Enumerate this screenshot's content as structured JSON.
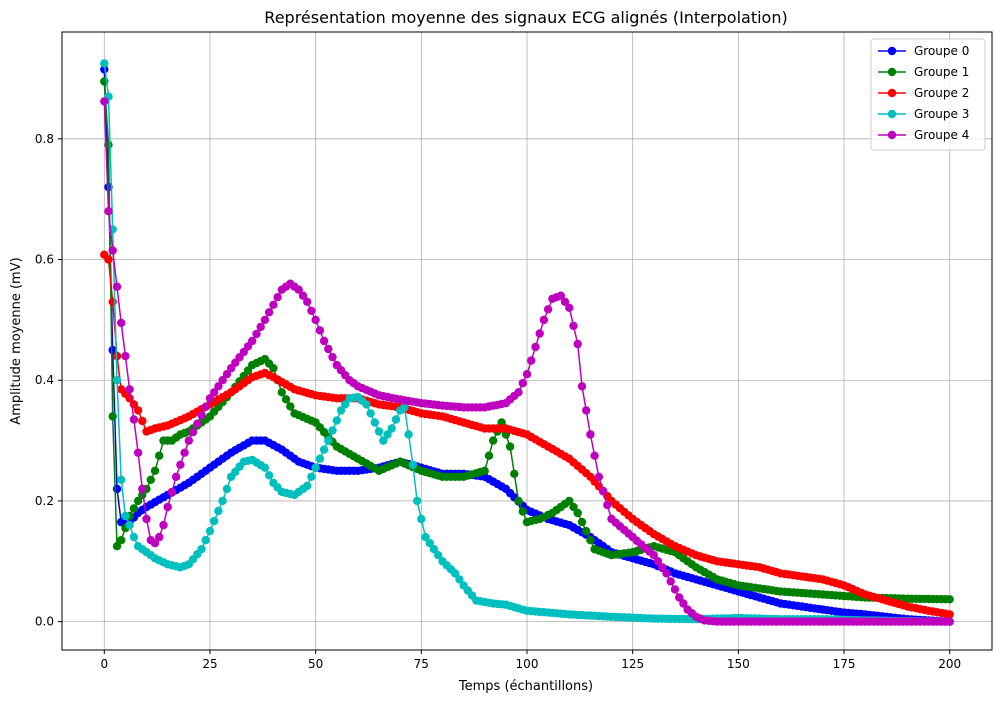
{
  "chart_data": {
    "type": "line",
    "title": "Représentation moyenne des signaux ECG alignés (Interpolation)",
    "xlabel": "Temps (échantillons)",
    "ylabel": "Amplitude moyenne (mV)",
    "xlim": [
      -10,
      210
    ],
    "ylim": [
      -0.047,
      0.977
    ],
    "xticks": [
      0,
      25,
      50,
      75,
      100,
      125,
      150,
      175,
      200
    ],
    "yticks": [
      0.0,
      0.2,
      0.4,
      0.6,
      0.8
    ],
    "xtick_labels": [
      "0",
      "25",
      "50",
      "75",
      "100",
      "125",
      "150",
      "175",
      "200"
    ],
    "ytick_labels": [
      "0.0",
      "0.2",
      "0.4",
      "0.6",
      "0.8"
    ],
    "grid": true,
    "legend_position": "top-right",
    "marker": "circle",
    "series": [
      {
        "name": "Groupe 0",
        "color": "#0000ff",
        "points": [
          [
            0,
            0.915
          ],
          [
            1,
            0.72
          ],
          [
            2,
            0.45
          ],
          [
            3,
            0.22
          ],
          [
            4,
            0.165
          ],
          [
            6,
            0.165
          ],
          [
            8,
            0.18
          ],
          [
            10,
            0.19
          ],
          [
            15,
            0.21
          ],
          [
            20,
            0.23
          ],
          [
            25,
            0.255
          ],
          [
            30,
            0.28
          ],
          [
            35,
            0.3
          ],
          [
            38,
            0.3
          ],
          [
            42,
            0.285
          ],
          [
            46,
            0.265
          ],
          [
            50,
            0.255
          ],
          [
            55,
            0.25
          ],
          [
            60,
            0.25
          ],
          [
            65,
            0.255
          ],
          [
            70,
            0.265
          ],
          [
            75,
            0.255
          ],
          [
            80,
            0.245
          ],
          [
            85,
            0.245
          ],
          [
            90,
            0.24
          ],
          [
            95,
            0.22
          ],
          [
            100,
            0.185
          ],
          [
            105,
            0.17
          ],
          [
            110,
            0.16
          ],
          [
            115,
            0.14
          ],
          [
            120,
            0.115
          ],
          [
            125,
            0.105
          ],
          [
            130,
            0.095
          ],
          [
            135,
            0.08
          ],
          [
            140,
            0.07
          ],
          [
            145,
            0.06
          ],
          [
            150,
            0.05
          ],
          [
            155,
            0.04
          ],
          [
            160,
            0.03
          ],
          [
            165,
            0.025
          ],
          [
            170,
            0.02
          ],
          [
            175,
            0.015
          ],
          [
            180,
            0.012
          ],
          [
            185,
            0.008
          ],
          [
            190,
            0.004
          ],
          [
            195,
            0.002
          ],
          [
            200,
            0.0
          ]
        ]
      },
      {
        "name": "Groupe 1",
        "color": "#008000",
        "points": [
          [
            0,
            0.895
          ],
          [
            1,
            0.79
          ],
          [
            2,
            0.34
          ],
          [
            3,
            0.125
          ],
          [
            4,
            0.135
          ],
          [
            6,
            0.175
          ],
          [
            8,
            0.2
          ],
          [
            10,
            0.22
          ],
          [
            12,
            0.25
          ],
          [
            14,
            0.3
          ],
          [
            16,
            0.3
          ],
          [
            18,
            0.31
          ],
          [
            20,
            0.315
          ],
          [
            25,
            0.34
          ],
          [
            30,
            0.38
          ],
          [
            35,
            0.425
          ],
          [
            38,
            0.435
          ],
          [
            40,
            0.42
          ],
          [
            42,
            0.38
          ],
          [
            45,
            0.345
          ],
          [
            50,
            0.33
          ],
          [
            55,
            0.29
          ],
          [
            60,
            0.27
          ],
          [
            65,
            0.25
          ],
          [
            70,
            0.265
          ],
          [
            75,
            0.25
          ],
          [
            80,
            0.24
          ],
          [
            85,
            0.24
          ],
          [
            90,
            0.25
          ],
          [
            92,
            0.3
          ],
          [
            94,
            0.33
          ],
          [
            96,
            0.29
          ],
          [
            98,
            0.2
          ],
          [
            100,
            0.165
          ],
          [
            103,
            0.17
          ],
          [
            106,
            0.18
          ],
          [
            110,
            0.2
          ],
          [
            112,
            0.18
          ],
          [
            116,
            0.12
          ],
          [
            120,
            0.11
          ],
          [
            125,
            0.115
          ],
          [
            130,
            0.125
          ],
          [
            135,
            0.115
          ],
          [
            140,
            0.09
          ],
          [
            145,
            0.07
          ],
          [
            150,
            0.06
          ],
          [
            160,
            0.05
          ],
          [
            170,
            0.045
          ],
          [
            180,
            0.04
          ],
          [
            190,
            0.038
          ],
          [
            200,
            0.037
          ]
        ]
      },
      {
        "name": "Groupe 2",
        "color": "#ff0000",
        "points": [
          [
            0,
            0.608
          ],
          [
            1,
            0.6
          ],
          [
            2,
            0.53
          ],
          [
            3,
            0.44
          ],
          [
            4,
            0.385
          ],
          [
            6,
            0.37
          ],
          [
            8,
            0.35
          ],
          [
            10,
            0.315
          ],
          [
            12,
            0.32
          ],
          [
            15,
            0.325
          ],
          [
            20,
            0.34
          ],
          [
            25,
            0.36
          ],
          [
            30,
            0.38
          ],
          [
            35,
            0.405
          ],
          [
            38,
            0.412
          ],
          [
            40,
            0.405
          ],
          [
            45,
            0.385
          ],
          [
            50,
            0.375
          ],
          [
            55,
            0.37
          ],
          [
            60,
            0.37
          ],
          [
            65,
            0.36
          ],
          [
            70,
            0.355
          ],
          [
            75,
            0.345
          ],
          [
            80,
            0.34
          ],
          [
            85,
            0.33
          ],
          [
            90,
            0.32
          ],
          [
            95,
            0.32
          ],
          [
            100,
            0.31
          ],
          [
            105,
            0.29
          ],
          [
            110,
            0.27
          ],
          [
            115,
            0.24
          ],
          [
            120,
            0.2
          ],
          [
            125,
            0.17
          ],
          [
            130,
            0.145
          ],
          [
            135,
            0.125
          ],
          [
            140,
            0.11
          ],
          [
            145,
            0.1
          ],
          [
            150,
            0.095
          ],
          [
            155,
            0.09
          ],
          [
            160,
            0.08
          ],
          [
            165,
            0.075
          ],
          [
            170,
            0.07
          ],
          [
            175,
            0.06
          ],
          [
            180,
            0.045
          ],
          [
            185,
            0.035
          ],
          [
            190,
            0.025
          ],
          [
            195,
            0.018
          ],
          [
            200,
            0.012
          ]
        ]
      },
      {
        "name": "Groupe 3",
        "color": "#00bfbf",
        "points": [
          [
            0,
            0.925
          ],
          [
            1,
            0.87
          ],
          [
            2,
            0.65
          ],
          [
            3,
            0.4
          ],
          [
            4,
            0.235
          ],
          [
            5,
            0.175
          ],
          [
            6,
            0.16
          ],
          [
            7,
            0.14
          ],
          [
            8,
            0.125
          ],
          [
            10,
            0.115
          ],
          [
            12,
            0.105
          ],
          [
            15,
            0.095
          ],
          [
            18,
            0.09
          ],
          [
            20,
            0.095
          ],
          [
            23,
            0.12
          ],
          [
            25,
            0.15
          ],
          [
            28,
            0.2
          ],
          [
            30,
            0.24
          ],
          [
            33,
            0.265
          ],
          [
            35,
            0.268
          ],
          [
            38,
            0.255
          ],
          [
            40,
            0.23
          ],
          [
            42,
            0.215
          ],
          [
            45,
            0.21
          ],
          [
            48,
            0.225
          ],
          [
            50,
            0.255
          ],
          [
            53,
            0.3
          ],
          [
            56,
            0.35
          ],
          [
            58,
            0.37
          ],
          [
            60,
            0.372
          ],
          [
            62,
            0.36
          ],
          [
            64,
            0.33
          ],
          [
            66,
            0.3
          ],
          [
            68,
            0.32
          ],
          [
            70,
            0.35
          ],
          [
            71,
            0.355
          ],
          [
            72,
            0.31
          ],
          [
            73,
            0.26
          ],
          [
            74,
            0.2
          ],
          [
            76,
            0.14
          ],
          [
            78,
            0.12
          ],
          [
            80,
            0.1
          ],
          [
            83,
            0.08
          ],
          [
            85,
            0.06
          ],
          [
            88,
            0.035
          ],
          [
            92,
            0.03
          ],
          [
            95,
            0.028
          ],
          [
            100,
            0.018
          ],
          [
            110,
            0.012
          ],
          [
            120,
            0.008
          ],
          [
            130,
            0.005
          ],
          [
            140,
            0.004
          ],
          [
            150,
            0.006
          ],
          [
            160,
            0.004
          ],
          [
            170,
            0.004
          ],
          [
            180,
            0.002
          ],
          [
            190,
            0.001
          ],
          [
            200,
            0.0
          ]
        ]
      },
      {
        "name": "Groupe 4",
        "color": "#bf00bf",
        "points": [
          [
            0,
            0.862
          ],
          [
            1,
            0.68
          ],
          [
            2,
            0.615
          ],
          [
            3,
            0.555
          ],
          [
            4,
            0.495
          ],
          [
            5,
            0.44
          ],
          [
            6,
            0.385
          ],
          [
            7,
            0.335
          ],
          [
            8,
            0.28
          ],
          [
            9,
            0.22
          ],
          [
            10,
            0.17
          ],
          [
            11,
            0.135
          ],
          [
            12,
            0.13
          ],
          [
            13,
            0.14
          ],
          [
            14,
            0.16
          ],
          [
            15,
            0.19
          ],
          [
            17,
            0.24
          ],
          [
            20,
            0.3
          ],
          [
            25,
            0.37
          ],
          [
            30,
            0.42
          ],
          [
            35,
            0.465
          ],
          [
            38,
            0.5
          ],
          [
            40,
            0.525
          ],
          [
            42,
            0.55
          ],
          [
            44,
            0.56
          ],
          [
            46,
            0.55
          ],
          [
            48,
            0.53
          ],
          [
            50,
            0.5
          ],
          [
            52,
            0.465
          ],
          [
            55,
            0.425
          ],
          [
            58,
            0.4
          ],
          [
            60,
            0.39
          ],
          [
            65,
            0.375
          ],
          [
            70,
            0.368
          ],
          [
            75,
            0.362
          ],
          [
            80,
            0.358
          ],
          [
            85,
            0.355
          ],
          [
            90,
            0.355
          ],
          [
            95,
            0.362
          ],
          [
            98,
            0.38
          ],
          [
            100,
            0.41
          ],
          [
            102,
            0.455
          ],
          [
            104,
            0.5
          ],
          [
            106,
            0.535
          ],
          [
            108,
            0.54
          ],
          [
            110,
            0.52
          ],
          [
            112,
            0.46
          ],
          [
            113,
            0.39
          ],
          [
            115,
            0.31
          ],
          [
            117,
            0.24
          ],
          [
            120,
            0.17
          ],
          [
            125,
            0.14
          ],
          [
            130,
            0.11
          ],
          [
            133,
            0.08
          ],
          [
            136,
            0.04
          ],
          [
            138,
            0.02
          ],
          [
            140,
            0.008
          ],
          [
            142,
            0.002
          ],
          [
            145,
            0.0
          ],
          [
            150,
            0.0
          ],
          [
            160,
            0.0
          ],
          [
            170,
            0.0
          ],
          [
            180,
            0.0
          ],
          [
            190,
            0.0
          ],
          [
            200,
            0.0
          ]
        ]
      }
    ]
  }
}
